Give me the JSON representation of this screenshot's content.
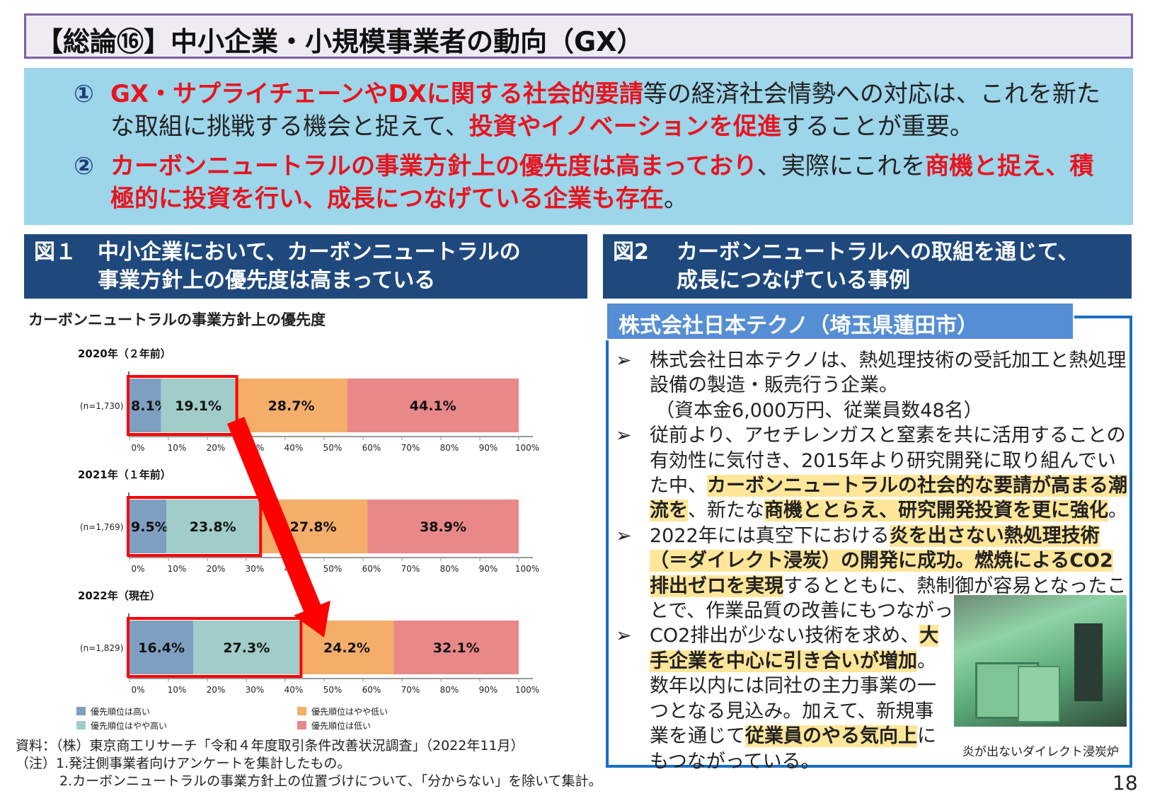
{
  "title": "【総論⑯】中小企業・小規模事業者の動向（GX）",
  "summary": [
    {
      "num": "①",
      "parts": [
        {
          "t": "GX・サプライチェーンやDXに関する社会的要請",
          "red": true
        },
        {
          "t": "等の経済社会情勢への対応は、これを新たな取組に挑戦する機会と捉えて、",
          "red": false
        },
        {
          "t": "投資やイノベーションを促進",
          "red": true
        },
        {
          "t": "することが重要。",
          "red": false
        }
      ]
    },
    {
      "num": "②",
      "parts": [
        {
          "t": "カーボンニュートラルの事業方針上の優先度は高まっており",
          "red": true
        },
        {
          "t": "、実際にこれを",
          "red": false
        },
        {
          "t": "商機と捉え、積極的に投資を行い、成長につなげている企業も存在",
          "red": true
        },
        {
          "t": "。",
          "red": false
        }
      ]
    }
  ],
  "fig1": {
    "label": "図１",
    "title_lines": [
      "中小企業において、カーボンニュートラルの",
      "事業方針上の優先度は高まっている"
    ],
    "subtitle": "カーボンニュートラルの事業方針上の優先度"
  },
  "fig2": {
    "label": "図2",
    "title_lines": [
      "カーボンニュートラルへの取組を通じて、",
      "成長につなげている事例"
    ]
  },
  "chart_data": {
    "type": "bar",
    "orientation": "horizontal-stacked-100",
    "title": "カーボンニュートラルの事業方針上の優先度",
    "xlim": [
      0,
      100
    ],
    "xticks": [
      "0%",
      "10%",
      "20%",
      "30%",
      "40%",
      "50%",
      "60%",
      "70%",
      "80%",
      "90%",
      "100%"
    ],
    "legend_position": "bottom",
    "series": [
      {
        "name": "優先順位は高い",
        "color": "#7f9fc0"
      },
      {
        "name": "優先順位はやや高い",
        "color": "#a0ccc9"
      },
      {
        "name": "優先順位はやや低い",
        "color": "#f4ae6a"
      },
      {
        "name": "優先順位は低い",
        "color": "#e88888"
      }
    ],
    "panels": [
      {
        "title": "2020年（２年前）",
        "n": "(n=1,730)",
        "values": [
          8.1,
          19.1,
          28.7,
          44.1
        ],
        "labels": [
          "8.1%",
          "19.1%",
          "28.7%",
          "44.1%"
        ]
      },
      {
        "title": "2021年（１年前）",
        "n": "(n=1,769)",
        "values": [
          9.5,
          23.8,
          27.8,
          38.9
        ],
        "labels": [
          "9.5%",
          "23.8%",
          "27.8%",
          "38.9%"
        ]
      },
      {
        "title": "2022年（現在）",
        "n": "(n=1,829)",
        "values": [
          16.4,
          27.3,
          24.2,
          32.1
        ],
        "labels": [
          "16.4%",
          "27.3%",
          "24.2%",
          "32.1%"
        ]
      }
    ],
    "highlight_color": "#ff0000"
  },
  "company": {
    "name": "株式会社日本テクノ（埼玉県蓮田市）",
    "bullet_icon": "arrowhead-bullet-icon",
    "bullets": [
      [
        {
          "t": "株式会社日本テクノは、熱処理技術の受託加工と熱処理設備の製造・販売行う企業。"
        },
        {
          "t": "（資本金6,000万円、従業員数48名）",
          "br": true
        }
      ],
      [
        {
          "t": "従前より、アセチレンガスと窒素を共に活用することの有効性に気付き、2015年より研究開発に取り組んでいた中、"
        },
        {
          "t": "カーボンニュートラルの社会的な要請が高まる潮流を",
          "hl": true
        },
        {
          "t": "、新たな"
        },
        {
          "t": "商機ととらえ、研究開発投資を更に強化",
          "hl": true
        },
        {
          "t": "。"
        }
      ],
      [
        {
          "t": "2022年には真空下における"
        },
        {
          "t": "炎を出さない熱処理技術（＝ダイレクト浸炭）の開発に成功。燃焼によるCO2排出ゼロを実現",
          "hl": true
        },
        {
          "t": "するとともに、熱制御が容易となったことで、作業品質の改善にもつながっている。"
        }
      ],
      [
        {
          "t": "CO2排出が少ない技術を求め、"
        },
        {
          "t": "大手企業を中心に引き合いが増加",
          "hl": true
        },
        {
          "t": "。数年以内には同社の主力事業の一つとなる見込み。加えて、新規事業を通じて"
        },
        {
          "t": "従業員のやる気向上",
          "hl": true
        },
        {
          "t": "にもつながっている。"
        }
      ]
    ],
    "photo_caption": "炎が出ないダイレクト浸炭炉"
  },
  "notes": [
    "資料：（株）東京商工リサーチ「令和４年度取引条件改善状況調査」（2022年11月）",
    "（注）1.発注側事業者向けアンケートを集計したもの。",
    "2.カーボンニュートラルの事業方針上の位置づけについて、「分からない」を除いて集計。"
  ],
  "page_number": "18"
}
